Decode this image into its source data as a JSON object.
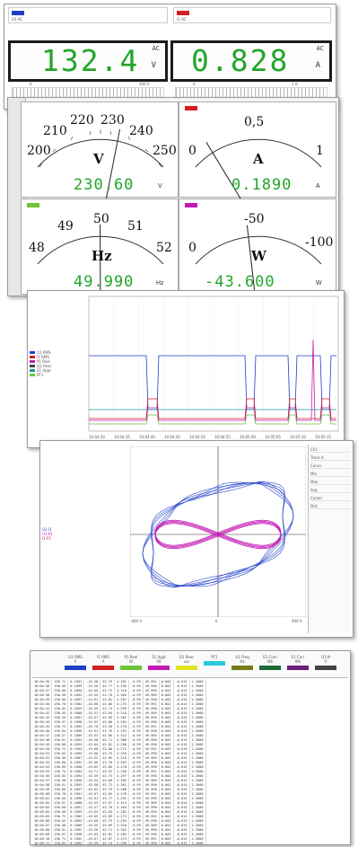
{
  "digital": {
    "left": {
      "channel": "U1 AC",
      "value": "132.4",
      "unit": "V",
      "mode": "AC",
      "color": "#1f3fc8",
      "scale_ends": [
        "0",
        "300 V"
      ]
    },
    "right": {
      "channel": "I1 AC",
      "value": "0.828",
      "unit": "A",
      "mode": "AC",
      "color": "#d21f1f",
      "scale_ends": [
        "0",
        "1 A"
      ]
    }
  },
  "analog": {
    "voltage": {
      "ticks": [
        "200",
        "210",
        "220",
        "230",
        "240",
        "250"
      ],
      "qty": "V",
      "value": "230.60",
      "unit": "V",
      "color": "#1f3fc8",
      "needle_fraction": 0.61
    },
    "current": {
      "ticks": [
        "0",
        "0,5",
        "1"
      ],
      "qty": "A",
      "value": "0.1890",
      "unit": "A",
      "color": "#d21f1f",
      "needle_fraction": 0.19
    },
    "frequency": {
      "ticks": [
        "48",
        "49",
        "50",
        "51",
        "52"
      ],
      "qty": "Hz",
      "value": "49.990",
      "unit": "Hz",
      "color": "#6fc43a",
      "needle_fraction": 0.498
    },
    "power": {
      "ticks": [
        "0",
        "-50",
        "-100"
      ],
      "qty": "W",
      "value": "-43.600",
      "unit": "W",
      "color": "#c41ab4",
      "needle_fraction": 0.436
    }
  },
  "trend": {
    "time_ticks": [
      "10:04:30",
      "10:04:35",
      "10:04:40",
      "10:04:45",
      "10:04:50",
      "10:04:55",
      "10:05:00",
      "10:05:05",
      "10:05:10",
      "10:05:15"
    ],
    "legend": [
      "U1 RMS",
      "I1 RMS",
      "P1 Real",
      "Q1 Reac",
      "S1 Appt",
      "PF1"
    ],
    "legend_colors": [
      "#1f3fc8",
      "#d21f1f",
      "#c41ab4",
      "#444444",
      "#1f9a9a",
      "#6fc43a"
    ]
  },
  "xy": {
    "x_ticks": [
      "-400 V",
      "0",
      "400 V"
    ],
    "legend": [
      "U1-I1",
      "U1-P1",
      "I1-P1"
    ],
    "legend_colors": [
      "#1f3fc8",
      "#c41ab4",
      "#d21f1f"
    ],
    "side_panel": [
      "Ch1",
      "Trace A",
      "Curve",
      "Min",
      "Max",
      "Avg",
      "Cursor",
      "Dist"
    ]
  },
  "table": {
    "headers": [
      "U1 RMS",
      "I1 RMS",
      "P1 Real",
      "S1 Appt",
      "Q1 Reac",
      "PF1",
      "U1 Freq",
      "E1 Cum",
      "E1 Curr",
      "U1-N"
    ],
    "header_units": [
      "V",
      "A",
      "W",
      "VA",
      "var",
      "",
      "Hz",
      "Wh",
      "Wh",
      "V"
    ],
    "colors": [
      "#1f3fc8",
      "#d21f1f",
      "#6fc43a",
      "#c41ab4",
      "#e3e31f",
      "#28c8d8",
      "#7a7a1a",
      "#1f6a3a",
      "#6a1f7a",
      "#444444"
    ],
    "rows": [
      [
        "10:04:35",
        "230.71",
        "0.1901",
        "-43.58",
        "43.79",
        "4.281",
        "-0.99",
        "49.991",
        "0.002",
        "-0.015",
        "2.2000"
      ],
      [
        "10:04:36",
        "230.65",
        "0.1899",
        "-43.56",
        "43.77",
        "4.296",
        "-0.99",
        "49.990",
        "0.002",
        "-0.015",
        "2.2000"
      ],
      [
        "10:04:37",
        "230.60",
        "0.1890",
        "-43.60",
        "43.72",
        "4.310",
        "-0.99",
        "49.990",
        "0.002",
        "-0.015",
        "2.2000"
      ],
      [
        "10:04:38",
        "230.58",
        "0.1894",
        "-43.55",
        "43.70",
        "4.305",
        "-0.99",
        "49.989",
        "0.002",
        "-0.015",
        "2.2000"
      ],
      [
        "10:04:39",
        "230.66",
        "0.1897",
        "-43.62",
        "43.81",
        "4.287",
        "-0.99",
        "49.990",
        "0.002",
        "-0.015",
        "2.2000"
      ],
      [
        "10:04:40",
        "230.70",
        "0.1902",
        "-43.66",
        "43.86",
        "4.275",
        "-0.99",
        "49.991",
        "0.002",
        "-0.015",
        "2.2000"
      ],
      [
        "10:04:41",
        "230.62",
        "0.1895",
        "-43.59",
        "43.74",
        "4.299",
        "-0.99",
        "49.990",
        "0.002",
        "-0.015",
        "2.2000"
      ],
      [
        "10:04:42",
        "230.55",
        "0.1888",
        "-43.51",
        "43.64",
        "4.318",
        "-0.99",
        "49.989",
        "0.002",
        "-0.015",
        "2.2000"
      ],
      [
        "10:04:43",
        "230.59",
        "0.1891",
        "-43.57",
        "43.69",
        "4.302",
        "-0.99",
        "49.990",
        "0.002",
        "-0.015",
        "2.2000"
      ],
      [
        "10:04:44",
        "230.67",
        "0.1898",
        "-43.63",
        "43.80",
        "4.284",
        "-0.99",
        "49.990",
        "0.002",
        "-0.015",
        "2.2000"
      ],
      [
        "10:04:45",
        "230.73",
        "0.1904",
        "-43.70",
        "43.90",
        "4.270",
        "-0.99",
        "49.991",
        "0.002",
        "-0.015",
        "2.2000"
      ],
      [
        "10:04:46",
        "230.64",
        "0.1896",
        "-43.61",
        "43.76",
        "4.293",
        "-0.99",
        "49.990",
        "0.002",
        "-0.015",
        "2.2000"
      ],
      [
        "10:04:47",
        "230.57",
        "0.1889",
        "-43.53",
        "43.66",
        "4.312",
        "-0.99",
        "49.989",
        "0.002",
        "-0.015",
        "2.2000"
      ],
      [
        "10:04:48",
        "230.61",
        "0.1893",
        "-43.58",
        "43.71",
        "4.300",
        "-0.99",
        "49.990",
        "0.002",
        "-0.015",
        "2.2000"
      ],
      [
        "10:04:49",
        "230.68",
        "0.1899",
        "-43.64",
        "43.82",
        "4.280",
        "-0.99",
        "49.990",
        "0.002",
        "-0.015",
        "2.2000"
      ],
      [
        "10:04:50",
        "230.72",
        "0.1903",
        "-43.68",
        "43.88",
        "4.272",
        "-0.99",
        "49.991",
        "0.002",
        "-0.015",
        "2.2000"
      ],
      [
        "10:04:51",
        "230.63",
        "0.1895",
        "-43.60",
        "43.75",
        "4.295",
        "-0.99",
        "49.990",
        "0.002",
        "-0.015",
        "2.2000"
      ],
      [
        "10:04:52",
        "230.56",
        "0.1887",
        "-43.52",
        "43.65",
        "4.316",
        "-0.99",
        "49.989",
        "0.002",
        "-0.015",
        "2.2000"
      ],
      [
        "10:04:53",
        "230.60",
        "0.1892",
        "-43.56",
        "43.70",
        "4.303",
        "-0.99",
        "49.990",
        "0.002",
        "-0.015",
        "2.2000"
      ],
      [
        "10:04:54",
        "230.69",
        "0.1900",
        "-43.65",
        "43.84",
        "4.278",
        "-0.99",
        "49.990",
        "0.002",
        "-0.015",
        "2.2000"
      ],
      [
        "10:04:55",
        "230.74",
        "0.1905",
        "-43.71",
        "43.92",
        "4.268",
        "-0.99",
        "49.991",
        "0.002",
        "-0.015",
        "2.2000"
      ],
      [
        "10:04:56",
        "230.62",
        "0.1894",
        "-43.59",
        "43.73",
        "4.297",
        "-0.99",
        "49.990",
        "0.002",
        "-0.015",
        "2.2000"
      ],
      [
        "10:04:57",
        "230.58",
        "0.1890",
        "-43.54",
        "43.68",
        "4.309",
        "-0.99",
        "49.989",
        "0.002",
        "-0.015",
        "2.2000"
      ],
      [
        "10:04:58",
        "230.61",
        "0.1893",
        "-43.58",
        "43.72",
        "4.301",
        "-0.99",
        "49.990",
        "0.002",
        "-0.015",
        "2.2000"
      ],
      [
        "10:04:59",
        "230.66",
        "0.1897",
        "-43.62",
        "43.79",
        "4.286",
        "-0.99",
        "49.990",
        "0.002",
        "-0.015",
        "2.2000"
      ],
      [
        "10:05:00",
        "230.70",
        "0.1901",
        "-43.67",
        "43.85",
        "4.276",
        "-0.99",
        "49.991",
        "0.002",
        "-0.015",
        "2.2000"
      ],
      [
        "10:05:01",
        "230.64",
        "0.1896",
        "-43.61",
        "43.77",
        "4.292",
        "-0.99",
        "49.990",
        "0.002",
        "-0.015",
        "2.2000"
      ],
      [
        "10:05:02",
        "230.57",
        "0.1888",
        "-43.53",
        "43.67",
        "4.314",
        "-0.99",
        "49.989",
        "0.002",
        "-0.015",
        "2.2000"
      ],
      [
        "10:05:03",
        "230.60",
        "0.1891",
        "-43.57",
        "43.70",
        "4.304",
        "-0.99",
        "49.990",
        "0.002",
        "-0.015",
        "2.2000"
      ],
      [
        "10:05:04",
        "230.68",
        "0.1899",
        "-43.64",
        "43.83",
        "4.281",
        "-0.99",
        "49.990",
        "0.002",
        "-0.015",
        "2.2000"
      ],
      [
        "10:05:05",
        "230.72",
        "0.1902",
        "-43.69",
        "43.89",
        "4.273",
        "-0.99",
        "49.991",
        "0.002",
        "-0.015",
        "2.2000"
      ],
      [
        "10:05:06",
        "230.63",
        "0.1895",
        "-43.60",
        "43.75",
        "4.294",
        "-0.99",
        "49.990",
        "0.002",
        "-0.015",
        "2.2000"
      ],
      [
        "10:05:07",
        "230.58",
        "0.1889",
        "-43.55",
        "43.69",
        "4.310",
        "-0.99",
        "49.989",
        "0.002",
        "-0.015",
        "2.2000"
      ],
      [
        "10:05:08",
        "230.61",
        "0.1892",
        "-43.58",
        "43.71",
        "4.302",
        "-0.99",
        "49.990",
        "0.002",
        "-0.015",
        "2.2000"
      ],
      [
        "10:05:09",
        "230.67",
        "0.1898",
        "-43.63",
        "43.81",
        "4.283",
        "-0.99",
        "49.990",
        "0.002",
        "-0.015",
        "2.2000"
      ],
      [
        "10:05:10",
        "230.71",
        "0.1902",
        "-43.67",
        "43.87",
        "4.274",
        "-0.99",
        "49.991",
        "0.002",
        "-0.015",
        "2.2000"
      ],
      [
        "10:05:11",
        "230.62",
        "0.1894",
        "-43.59",
        "43.74",
        "4.296",
        "-0.99",
        "49.990",
        "0.002",
        "-0.015",
        "2.2000"
      ],
      [
        "10:05:12",
        "230.57",
        "0.1889",
        "-43.54",
        "43.67",
        "4.311",
        "-0.99",
        "49.989",
        "0.002",
        "-0.015",
        "2.2000"
      ],
      [
        "10:05:13",
        "230.60",
        "0.1891",
        "-43.57",
        "43.70",
        "4.303",
        "-0.99",
        "49.990",
        "0.002",
        "-0.015",
        "2.2000"
      ],
      [
        "10:05:14",
        "230.66",
        "0.1897",
        "-43.62",
        "43.80",
        "4.285",
        "-0.99",
        "49.990",
        "0.002",
        "-0.015",
        "2.2000"
      ],
      [
        "10:05:15",
        "230.70",
        "0.1901",
        "-43.66",
        "43.86",
        "4.277",
        "-0.99",
        "49.991",
        "0.002",
        "-0.015",
        "2.2000"
      ]
    ]
  }
}
